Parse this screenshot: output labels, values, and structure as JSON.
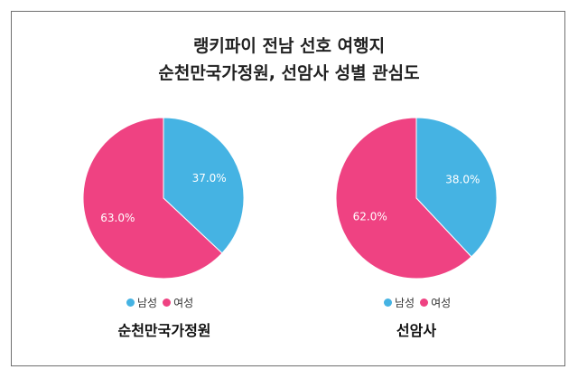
{
  "title": {
    "line1": "랭키파이 전남 선호 여행지",
    "line2": "순천만국가정원, 선암사 성별 관심도"
  },
  "colors": {
    "male": "#45b3e3",
    "female": "#ef4282"
  },
  "chart_data": [
    {
      "type": "pie",
      "title": "순천만국가정원",
      "categories": [
        "남성",
        "여성"
      ],
      "values": [
        37.0,
        63.0
      ],
      "labels": [
        "37.0%",
        "63.0%"
      ],
      "legend": "bottom"
    },
    {
      "type": "pie",
      "title": "선암사",
      "categories": [
        "남성",
        "여성"
      ],
      "values": [
        38.0,
        62.0
      ],
      "labels": [
        "38.0%",
        "62.0%"
      ],
      "legend": "bottom"
    }
  ]
}
